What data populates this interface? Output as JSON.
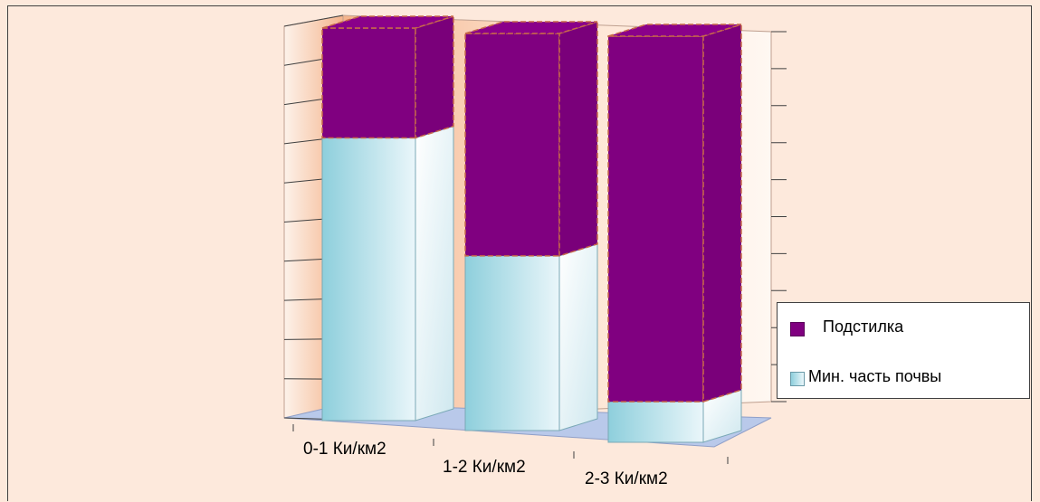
{
  "chart_data": {
    "type": "bar",
    "stacked": true,
    "three_d": true,
    "categories": [
      "0-1 Ки/км2",
      "1-2 Ки/км2",
      "2-3 Ки/км2"
    ],
    "series": [
      {
        "name": "Мин. часть почвы",
        "values": [
          0.72,
          0.44,
          0.1
        ],
        "color": "#cfeaf1"
      },
      {
        "name": "Подстилка",
        "values": [
          0.28,
          0.56,
          0.9
        ],
        "color": "#800080"
      }
    ],
    "ylim": [
      0,
      1
    ],
    "grid": true,
    "legend_position": "right",
    "title": "",
    "xlabel": "",
    "ylabel": ""
  },
  "legend": {
    "items": [
      {
        "label": "Подстилка",
        "color": "#800080"
      },
      {
        "label": "Мин. часть почвы",
        "color": "#cfeaf1"
      }
    ]
  }
}
